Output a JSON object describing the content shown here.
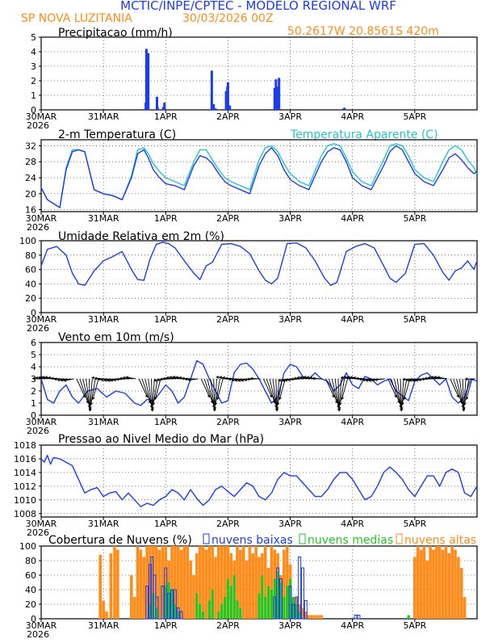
{
  "header": {
    "title": "MCTIC/INPE/CPTEC - MODELO REGIONAL WRF",
    "location": "SP NOVA LUZITANIA",
    "run_date": "30/03/2026 00Z",
    "coords": "50.2617W 20.8561S 420m"
  },
  "colors": {
    "title": "#1c3cf0",
    "location": "#ff8c1a",
    "precip": "#1c3cf0",
    "temp": "#1c3cf0",
    "apparent": "#20c8c8",
    "low_cloud": "#1c3cf0",
    "mid_cloud": "#22c822",
    "high_cloud": "#ff8c1a"
  },
  "x_axis": {
    "year": "2026",
    "ticks": [
      "30MAR",
      "31MAR",
      "1APR",
      "2APR",
      "3APR",
      "4APR",
      "5APR"
    ],
    "tick_days": [
      0,
      1,
      2,
      3,
      4,
      5,
      6
    ],
    "range_days": [
      0,
      7
    ]
  },
  "chart_data": [
    {
      "type": "bar",
      "id": "precip",
      "title": "Precipitacao (mm/h)",
      "ylim": [
        0,
        5
      ],
      "yticks": [
        0,
        1,
        2,
        3,
        4,
        5
      ],
      "x_days": [
        1.68,
        1.69,
        1.72,
        1.7,
        1.86,
        1.87,
        1.96,
        1.98,
        2.74,
        2.77,
        2.8,
        2.97,
        2.99,
        3.0,
        3.03,
        3.75,
        3.77,
        3.8,
        3.82,
        4.86,
        4.87,
        5.87
      ],
      "values": [
        0.5,
        4.2,
        3.9,
        0.6,
        0.9,
        0.2,
        0.2,
        0.5,
        2.7,
        0.4,
        0.1,
        1.3,
        1.6,
        1.9,
        0.3,
        1.5,
        2.1,
        1.6,
        2.2,
        0.1,
        0.15,
        0.05
      ]
    },
    {
      "type": "line",
      "id": "temp",
      "title": "2-m Temperatura (C)",
      "legend": "Temperatura Aparente (C)",
      "ylim": [
        15.5,
        33.5
      ],
      "yticks": [
        16,
        20,
        24,
        28,
        32
      ],
      "series": [
        {
          "name": "2-m Temperatura (C)",
          "x": [
            0,
            0.1,
            0.2,
            0.3,
            0.4,
            0.5,
            0.6,
            0.7,
            0.85,
            1.0,
            1.15,
            1.3,
            1.45,
            1.55,
            1.65,
            1.72,
            1.8,
            1.9,
            2.0,
            2.15,
            2.3,
            2.45,
            2.55,
            2.65,
            2.75,
            2.85,
            2.95,
            3.05,
            3.2,
            3.35,
            3.5,
            3.6,
            3.7,
            3.8,
            3.9,
            4.0,
            4.15,
            4.3,
            4.5,
            4.6,
            4.7,
            4.8,
            4.9,
            5.0,
            5.15,
            5.3,
            5.5,
            5.6,
            5.7,
            5.8,
            5.9,
            6.0,
            6.15,
            6.3,
            6.45,
            6.55,
            6.65,
            6.75,
            6.85,
            6.95,
            7.0
          ],
          "values": [
            21.5,
            18.5,
            17.5,
            16.5,
            26.0,
            30.5,
            31.0,
            30.5,
            21.0,
            20.0,
            19.5,
            18.5,
            24.0,
            30.0,
            31.0,
            29.0,
            26.0,
            24.0,
            22.5,
            22.0,
            21.0,
            27.0,
            29.5,
            29.0,
            27.5,
            25.0,
            23.0,
            22.0,
            21.0,
            20.0,
            27.0,
            30.0,
            31.5,
            29.5,
            26.0,
            23.5,
            22.0,
            21.0,
            28.0,
            30.5,
            31.5,
            31.0,
            28.0,
            24.0,
            22.0,
            21.0,
            27.0,
            30.5,
            32.0,
            31.0,
            28.0,
            25.0,
            23.0,
            22.0,
            26.0,
            29.0,
            30.0,
            28.5,
            26.5,
            25.0,
            25.5
          ]
        },
        {
          "name": "Temperatura Aparente (C)",
          "x": [
            0,
            0.1,
            0.2,
            0.3,
            0.4,
            0.5,
            0.6,
            0.7,
            0.85,
            1.0,
            1.15,
            1.3,
            1.45,
            1.55,
            1.65,
            1.72,
            1.8,
            1.9,
            2.0,
            2.15,
            2.3,
            2.45,
            2.55,
            2.65,
            2.75,
            2.85,
            2.95,
            3.05,
            3.2,
            3.35,
            3.5,
            3.6,
            3.7,
            3.8,
            3.9,
            4.0,
            4.15,
            4.3,
            4.5,
            4.6,
            4.7,
            4.8,
            4.9,
            5.0,
            5.15,
            5.3,
            5.5,
            5.6,
            5.7,
            5.8,
            5.9,
            6.0,
            6.15,
            6.3,
            6.45,
            6.55,
            6.65,
            6.75,
            6.85,
            6.95,
            7.0
          ],
          "values": [
            21.5,
            18.5,
            17.5,
            16.5,
            26.5,
            31.0,
            31.0,
            30.5,
            21.0,
            20.0,
            19.5,
            18.5,
            24.5,
            31.0,
            31.5,
            30.0,
            27.5,
            25.5,
            24.0,
            23.0,
            22.0,
            28.0,
            31.0,
            31.0,
            28.5,
            26.0,
            24.0,
            23.0,
            22.0,
            21.0,
            28.5,
            31.5,
            32.0,
            30.5,
            27.5,
            25.0,
            23.0,
            22.0,
            29.5,
            32.0,
            32.5,
            32.0,
            29.0,
            25.5,
            23.0,
            22.0,
            28.5,
            32.0,
            32.5,
            32.0,
            29.5,
            26.0,
            24.0,
            23.0,
            28.0,
            31.0,
            32.0,
            31.0,
            28.5,
            26.5,
            25.0
          ]
        }
      ]
    },
    {
      "type": "line",
      "id": "rh",
      "title": "Umidade Relativa em 2m (%)",
      "ylim": [
        0,
        100
      ],
      "yticks": [
        0,
        20,
        40,
        60,
        80,
        100
      ],
      "x": [
        0,
        0.1,
        0.25,
        0.4,
        0.5,
        0.6,
        0.7,
        0.85,
        1.0,
        1.15,
        1.3,
        1.45,
        1.55,
        1.65,
        1.75,
        1.85,
        1.95,
        2.05,
        2.15,
        2.3,
        2.45,
        2.55,
        2.65,
        2.75,
        2.9,
        3.05,
        3.2,
        3.35,
        3.5,
        3.6,
        3.7,
        3.8,
        3.95,
        4.1,
        4.25,
        4.4,
        4.55,
        4.65,
        4.75,
        4.9,
        5.05,
        5.2,
        5.35,
        5.5,
        5.6,
        5.7,
        5.85,
        6.0,
        6.15,
        6.3,
        6.45,
        6.55,
        6.65,
        6.75,
        6.85,
        6.95,
        7.0
      ],
      "values": [
        65,
        88,
        92,
        80,
        55,
        40,
        38,
        58,
        72,
        78,
        85,
        60,
        46,
        45,
        75,
        95,
        98,
        96,
        90,
        72,
        55,
        46,
        65,
        70,
        95,
        96,
        92,
        82,
        58,
        45,
        40,
        48,
        96,
        97,
        90,
        72,
        48,
        38,
        42,
        85,
        92,
        96,
        90,
        65,
        48,
        42,
        55,
        95,
        96,
        80,
        56,
        45,
        58,
        62,
        72,
        60,
        72
      ]
    },
    {
      "type": "line",
      "id": "wind",
      "title": "Vento em 10m (m/s)",
      "ylim": [
        0,
        6
      ],
      "yticks": [
        0,
        1,
        2,
        3,
        4,
        5,
        6
      ],
      "x": [
        0,
        0.1,
        0.2,
        0.3,
        0.4,
        0.5,
        0.6,
        0.75,
        0.9,
        1.05,
        1.2,
        1.35,
        1.5,
        1.6,
        1.7,
        1.8,
        1.9,
        2.0,
        2.1,
        2.2,
        2.3,
        2.4,
        2.5,
        2.6,
        2.7,
        2.8,
        2.9,
        3.0,
        3.1,
        3.2,
        3.3,
        3.4,
        3.5,
        3.6,
        3.7,
        3.8,
        3.9,
        4.0,
        4.1,
        4.2,
        4.3,
        4.4,
        4.5,
        4.6,
        4.7,
        4.8,
        4.9,
        5.0,
        5.1,
        5.2,
        5.3,
        5.4,
        5.5,
        5.6,
        5.7,
        5.8,
        5.9,
        6.0,
        6.1,
        6.2,
        6.3,
        6.4,
        6.5,
        6.6,
        6.7,
        6.8,
        6.9,
        7.0
      ],
      "values": [
        3.0,
        1.3,
        1.0,
        2.0,
        2.5,
        1.5,
        1.0,
        2.0,
        2.2,
        1.5,
        2.0,
        1.8,
        1.0,
        0.8,
        1.3,
        1.2,
        1.8,
        2.5,
        2.0,
        1.0,
        1.5,
        3.0,
        4.5,
        4.2,
        3.0,
        2.0,
        1.0,
        1.2,
        3.5,
        4.2,
        4.3,
        3.8,
        3.0,
        2.0,
        1.0,
        1.5,
        3.5,
        4.2,
        4.0,
        3.2,
        3.0,
        3.5,
        3.0,
        2.8,
        2.0,
        2.5,
        3.5,
        2.5,
        2.2,
        3.2,
        3.0,
        2.5,
        2.8,
        3.0,
        2.0,
        1.6,
        1.2,
        2.8,
        3.3,
        3.5,
        3.0,
        2.5,
        3.0,
        1.5,
        1.0,
        1.5,
        3.0,
        2.8
      ]
    },
    {
      "type": "line",
      "id": "pressure",
      "title": "Pressao ao Nivel Medio do Mar (hPa)",
      "ylim": [
        1007.5,
        1018
      ],
      "yticks": [
        1008,
        1010,
        1012,
        1014,
        1016,
        1018
      ],
      "x": [
        0,
        0.05,
        0.1,
        0.15,
        0.2,
        0.3,
        0.4,
        0.5,
        0.6,
        0.7,
        0.8,
        0.9,
        1.0,
        1.1,
        1.2,
        1.3,
        1.4,
        1.5,
        1.6,
        1.7,
        1.8,
        1.9,
        2.0,
        2.1,
        2.2,
        2.3,
        2.4,
        2.5,
        2.6,
        2.7,
        2.8,
        2.9,
        3.0,
        3.1,
        3.2,
        3.3,
        3.4,
        3.5,
        3.6,
        3.7,
        3.8,
        3.9,
        4.0,
        4.1,
        4.2,
        4.3,
        4.4,
        4.5,
        4.6,
        4.7,
        4.8,
        4.9,
        5.0,
        5.1,
        5.2,
        5.3,
        5.4,
        5.5,
        5.6,
        5.7,
        5.8,
        5.9,
        6.0,
        6.1,
        6.2,
        6.3,
        6.4,
        6.5,
        6.6,
        6.7,
        6.8,
        6.9,
        7.0
      ],
      "values": [
        1016.0,
        1015.5,
        1016.5,
        1015.2,
        1016.2,
        1016.0,
        1015.5,
        1015.0,
        1013.0,
        1011.0,
        1011.5,
        1011.8,
        1010.5,
        1011.0,
        1011.2,
        1010.0,
        1011.0,
        1010.0,
        1009.0,
        1009.5,
        1009.2,
        1010.0,
        1010.5,
        1011.5,
        1011.0,
        1010.0,
        1011.5,
        1010.2,
        1009.2,
        1010.0,
        1011.5,
        1012.0,
        1011.2,
        1010.5,
        1011.5,
        1012.5,
        1012.0,
        1010.5,
        1010.0,
        1011.0,
        1013.0,
        1014.0,
        1013.5,
        1013.5,
        1012.5,
        1011.5,
        1010.5,
        1010.5,
        1011.5,
        1013.0,
        1014.0,
        1014.0,
        1013.0,
        1011.5,
        1010.0,
        1010.5,
        1012.0,
        1014.0,
        1014.8,
        1014.0,
        1013.0,
        1011.5,
        1010.5,
        1012.0,
        1013.5,
        1013.5,
        1012.0,
        1014.0,
        1014.5,
        1014.0,
        1011.0,
        1010.5,
        1012.0
      ]
    },
    {
      "type": "bar",
      "id": "clouds",
      "title": "Cobertura de Nuvens (%)",
      "ylim": [
        0,
        100
      ],
      "yticks": [
        0,
        20,
        40,
        60,
        80,
        100
      ],
      "legend": [
        "nuvens baixas",
        "nuvens medias",
        "nuvens altas"
      ],
      "series": [
        {
          "name": "nuvens altas",
          "x": [
            0.95,
            1.0,
            1.05,
            1.12,
            1.18,
            1.23,
            1.45,
            1.5,
            1.55,
            1.6,
            1.65,
            1.7,
            1.75,
            1.8,
            1.85,
            1.9,
            1.95,
            2.0,
            2.05,
            2.1,
            2.15,
            2.2,
            2.25,
            2.3,
            2.35,
            2.4,
            2.45,
            2.5,
            2.55,
            2.6,
            2.65,
            2.7,
            2.75,
            2.8,
            2.85,
            2.9,
            2.95,
            3.0,
            3.05,
            3.1,
            3.15,
            3.2,
            3.25,
            3.3,
            3.35,
            3.4,
            3.45,
            3.5,
            3.55,
            3.6,
            3.65,
            3.7,
            3.75,
            3.8,
            3.85,
            3.9,
            3.95,
            4.0,
            4.05,
            4.1,
            4.15,
            4.2,
            4.25,
            4.3,
            4.35,
            4.4,
            4.45,
            4.5,
            6.0,
            6.05,
            6.1,
            6.15,
            6.2,
            6.25,
            6.3,
            6.35,
            6.4,
            6.45,
            6.5,
            6.55,
            6.6,
            6.65,
            6.7,
            6.75,
            6.8
          ],
          "values": [
            88,
            25,
            10,
            90,
            100,
            95,
            60,
            30,
            100,
            95,
            85,
            100,
            100,
            100,
            100,
            95,
            100,
            100,
            80,
            100,
            100,
            100,
            95,
            100,
            100,
            80,
            60,
            90,
            100,
            100,
            95,
            100,
            100,
            85,
            100,
            100,
            100,
            100,
            90,
            80,
            100,
            95,
            100,
            80,
            100,
            90,
            100,
            85,
            90,
            100,
            70,
            100,
            95,
            90,
            60,
            95,
            100,
            75,
            20,
            30,
            20,
            15,
            10,
            5,
            5,
            5,
            5,
            5,
            85,
            100,
            95,
            100,
            80,
            100,
            95,
            100,
            100,
            95,
            100,
            90,
            100,
            95,
            85,
            70,
            30
          ]
        },
        {
          "name": "nuvens medias",
          "x": [
            1.75,
            1.8,
            1.85,
            2.0,
            2.05,
            2.1,
            2.15,
            2.2,
            2.5,
            2.55,
            2.6,
            2.7,
            2.75,
            2.85,
            2.9,
            2.95,
            3.0,
            3.05,
            3.1,
            3.15,
            3.2,
            3.5,
            3.55,
            3.6,
            3.65,
            3.7,
            3.75,
            3.8,
            3.85,
            3.9,
            3.95,
            4.0,
            4.05,
            4.1,
            4.15,
            5.9
          ],
          "values": [
            20,
            35,
            15,
            45,
            50,
            40,
            20,
            10,
            35,
            20,
            10,
            25,
            40,
            10,
            20,
            30,
            55,
            45,
            60,
            25,
            15,
            35,
            60,
            30,
            45,
            40,
            55,
            65,
            50,
            30,
            45,
            55,
            30,
            20,
            10,
            5
          ]
        },
        {
          "name": "nuvens baixas",
          "x": [
            1.7,
            1.75,
            1.78,
            1.82,
            1.86,
            1.95,
            2.0,
            2.05,
            2.1,
            2.15,
            2.2,
            2.25,
            3.75,
            3.8,
            3.85,
            4.0,
            4.05,
            4.1,
            4.15,
            4.2,
            4.25,
            5.05,
            5.1
          ],
          "values": [
            45,
            75,
            85,
            60,
            30,
            45,
            70,
            35,
            40,
            40,
            15,
            10,
            30,
            70,
            55,
            45,
            20,
            30,
            85,
            70,
            25,
            5,
            5
          ]
        }
      ]
    }
  ]
}
